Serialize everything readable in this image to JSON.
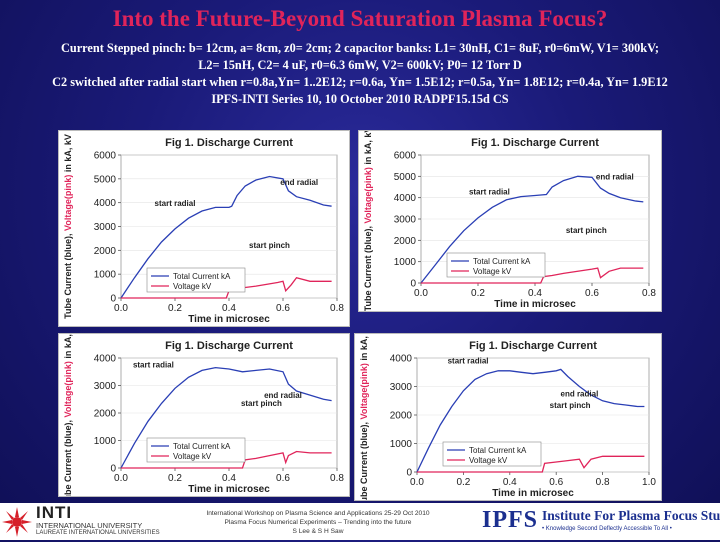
{
  "title": "Into the Future-Beyond Saturation Plasma Focus?",
  "description_lines": [
    "Current Stepped pinch: b= 12cm, a= 8cm, z0= 2cm; 2 capacitor banks: L1= 30nH, C1= 8uF, r0=6mW, V1= 300kV;",
    "L2= 15nH, C2= 4 uF, r0=6.3 6mW, V2= 600kV; P0= 12 Torr D",
    "C2 switched after radial start when r=0.8a,Yn= 1..2E12; r=0.6a, Yn= 1.5E12; r=0.5a, Yn= 1.8E12; r=0.4a, Yn= 1.9E12",
    "IPFS-INTI Series 10, 10 October 2010 RADPF15.15d CS"
  ],
  "colors": {
    "current": "#2a3fb5",
    "voltage": "#e0245a",
    "title": "#e0245a"
  },
  "chart_data": [
    {
      "type": "line",
      "title": "Fig 1. Discharge Current",
      "xlabel": "Time in microsec",
      "ylabel_parts": [
        "Tube Current (blue), ",
        "Voltage(pink)",
        " in kA, ",
        "kV"
      ],
      "xlim": [
        0,
        0.8
      ],
      "ylim": [
        0,
        6000
      ],
      "x_ticks": [
        "0.0",
        "0.2",
        "0.4",
        "0.6",
        "0.8"
      ],
      "y_ticks": [
        "0",
        "1000",
        "2000",
        "3000",
        "4000",
        "5000",
        "6000"
      ],
      "legend": [
        "Total Current kA",
        "Voltage kV"
      ],
      "annotations": [
        {
          "text": "start radial",
          "x": 0.2,
          "y": 3850
        },
        {
          "text": "end radial",
          "x": 0.66,
          "y": 4750
        },
        {
          "text": "start pinch",
          "x": 0.55,
          "y": 2100
        }
      ],
      "series": [
        {
          "name": "Total Current kA",
          "x": [
            0,
            0.05,
            0.1,
            0.15,
            0.2,
            0.25,
            0.3,
            0.35,
            0.4,
            0.41,
            0.43,
            0.46,
            0.5,
            0.55,
            0.6,
            0.62,
            0.65,
            0.7,
            0.75,
            0.78
          ],
          "y": [
            0,
            850,
            1650,
            2350,
            2900,
            3350,
            3650,
            3800,
            3800,
            3850,
            4300,
            4700,
            4950,
            5100,
            5000,
            4500,
            4250,
            4100,
            3900,
            3850
          ]
        },
        {
          "name": "Voltage kV",
          "x": [
            0,
            0.2,
            0.39,
            0.4,
            0.41,
            0.43,
            0.5,
            0.58,
            0.6,
            0.61,
            0.63,
            0.65,
            0.7,
            0.75,
            0.78
          ],
          "y": [
            0,
            0,
            0,
            300,
            300,
            400,
            500,
            650,
            700,
            300,
            550,
            850,
            700,
            700,
            700
          ]
        }
      ]
    },
    {
      "type": "line",
      "title": "Fig 1. Discharge Current",
      "xlabel": "Time in microsec",
      "ylabel_parts": [
        "Tube Current (blue), ",
        "Voltage(pink)",
        " in kA, ",
        "kV"
      ],
      "xlim": [
        0,
        0.8
      ],
      "ylim": [
        0,
        6000
      ],
      "x_ticks": [
        "0.0",
        "0.2",
        "0.4",
        "0.6",
        "0.8"
      ],
      "y_ticks": [
        "0",
        "1000",
        "2000",
        "3000",
        "4000",
        "5000",
        "6000"
      ],
      "legend": [
        "Total Current kA",
        "Voltage kV"
      ],
      "annotations": [
        {
          "text": "start radial",
          "x": 0.24,
          "y": 4150
        },
        {
          "text": "end radial",
          "x": 0.68,
          "y": 4850
        },
        {
          "text": "start pinch",
          "x": 0.58,
          "y": 2350
        }
      ],
      "series": [
        {
          "name": "Total Current kA",
          "x": [
            0,
            0.05,
            0.1,
            0.15,
            0.2,
            0.25,
            0.3,
            0.35,
            0.4,
            0.44,
            0.46,
            0.5,
            0.55,
            0.6,
            0.63,
            0.66,
            0.7,
            0.75,
            0.78
          ],
          "y": [
            0,
            850,
            1700,
            2450,
            3050,
            3550,
            3900,
            4050,
            4100,
            4150,
            4500,
            4800,
            5000,
            4950,
            4450,
            4200,
            4000,
            3850,
            3800
          ]
        },
        {
          "name": "Voltage kV",
          "x": [
            0,
            0.2,
            0.42,
            0.43,
            0.46,
            0.5,
            0.6,
            0.62,
            0.63,
            0.66,
            0.7,
            0.75,
            0.78
          ],
          "y": [
            0,
            0,
            0,
            300,
            350,
            450,
            650,
            700,
            250,
            550,
            700,
            700,
            700
          ]
        }
      ]
    },
    {
      "type": "line",
      "title": "Fig 1. Discharge Current",
      "xlabel": "Time in microsec",
      "ylabel_parts": [
        "Tube Current (blue), ",
        "Voltage(pink)",
        " in kA, ",
        "kV"
      ],
      "xlim": [
        0,
        0.8
      ],
      "ylim": [
        0,
        4000
      ],
      "x_ticks": [
        "0.0",
        "0.2",
        "0.4",
        "0.6",
        "0.8"
      ],
      "y_ticks": [
        "0",
        "1000",
        "2000",
        "3000",
        "4000"
      ],
      "legend": [
        "Total Current kA",
        "Voltage kV"
      ],
      "annotations": [
        {
          "text": "start radial",
          "x": 0.12,
          "y": 3650
        },
        {
          "text": "end radial",
          "x": 0.6,
          "y": 2550
        },
        {
          "text": "start pinch",
          "x": 0.52,
          "y": 2250
        }
      ],
      "series": [
        {
          "name": "Total Current kA",
          "x": [
            0,
            0.05,
            0.1,
            0.15,
            0.2,
            0.25,
            0.3,
            0.35,
            0.4,
            0.45,
            0.5,
            0.55,
            0.6,
            0.62,
            0.65,
            0.7,
            0.75,
            0.78
          ],
          "y": [
            0,
            900,
            1700,
            2350,
            2900,
            3300,
            3550,
            3650,
            3600,
            3500,
            3550,
            3600,
            3500,
            3050,
            2800,
            2650,
            2500,
            2450
          ]
        },
        {
          "name": "Voltage kV",
          "x": [
            0,
            0.3,
            0.45,
            0.46,
            0.5,
            0.55,
            0.6,
            0.61,
            0.62,
            0.65,
            0.7,
            0.75,
            0.78
          ],
          "y": [
            0,
            0,
            0,
            300,
            350,
            450,
            550,
            200,
            450,
            600,
            550,
            550,
            550
          ]
        }
      ]
    },
    {
      "type": "line",
      "title": "Fig 1. Discharge Current",
      "xlabel": "Time in microsec",
      "ylabel_parts": [
        "Tube Current (blue), ",
        "Voltage(pink)",
        " in kA, ",
        "kV"
      ],
      "xlim": [
        0,
        1.0
      ],
      "ylim": [
        0,
        4000
      ],
      "x_ticks": [
        "0.0",
        "0.2",
        "0.4",
        "0.6",
        "0.8",
        "1.0"
      ],
      "y_ticks": [
        "0",
        "1000",
        "2000",
        "3000",
        "4000"
      ],
      "legend": [
        "Total Current kA",
        "Voltage kV"
      ],
      "annotations": [
        {
          "text": "start radial",
          "x": 0.22,
          "y": 3800
        },
        {
          "text": "end radial",
          "x": 0.7,
          "y": 2650
        },
        {
          "text": "start pinch",
          "x": 0.66,
          "y": 2250
        }
      ],
      "series": [
        {
          "name": "Total Current kA",
          "x": [
            0,
            0.05,
            0.1,
            0.15,
            0.2,
            0.25,
            0.3,
            0.35,
            0.4,
            0.45,
            0.5,
            0.55,
            0.6,
            0.62,
            0.65,
            0.7,
            0.75,
            0.8,
            0.85,
            0.9,
            0.95,
            0.98
          ],
          "y": [
            0,
            850,
            1650,
            2300,
            2850,
            3250,
            3450,
            3550,
            3550,
            3500,
            3450,
            3500,
            3550,
            3600,
            3350,
            3000,
            2700,
            2500,
            2400,
            2350,
            2300,
            2300
          ]
        },
        {
          "name": "Voltage kV",
          "x": [
            0,
            0.3,
            0.54,
            0.55,
            0.6,
            0.65,
            0.7,
            0.72,
            0.75,
            0.8,
            0.9,
            0.98
          ],
          "y": [
            0,
            0,
            0,
            300,
            350,
            400,
            450,
            150,
            450,
            550,
            550,
            550
          ]
        }
      ]
    }
  ],
  "footer": {
    "inti_name": "INTI",
    "inti_sub": "INTERNATIONAL UNIVERSITY",
    "inti_sub2": "LAUREATE INTERNATIONAL UNIVERSITIES",
    "workshop_lines": [
      "International Workshop on Plasma Science and Applications 25-29 Oct 2010",
      "Plasma Focus Numerical Experiments – Trending into the future",
      "S Lee & S H Saw"
    ],
    "ipfs_abbr": "IPFS",
    "ipfs_full": "Institute For Plasma Focus Studies",
    "ipfs_tag": "• Knowledge Second Deflectly Accessible To All •"
  }
}
